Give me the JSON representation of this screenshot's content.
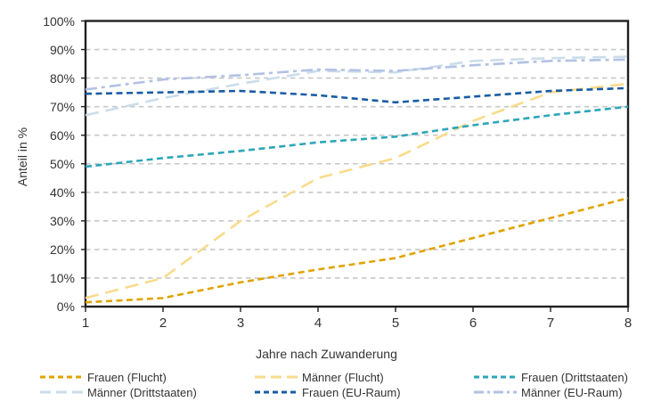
{
  "chart_data": {
    "type": "line",
    "x": [
      1,
      2,
      3,
      4,
      5,
      6,
      7,
      8
    ],
    "xtick_labels": [
      "1",
      "2",
      "3",
      "4",
      "5",
      "6",
      "7",
      "8"
    ],
    "ytick_labels": [
      "0%",
      "10%",
      "20%",
      "30%",
      "40%",
      "50%",
      "60%",
      "70%",
      "80%",
      "90%",
      "100%"
    ],
    "xlabel": "Jahre nach Zuwanderung",
    "ylabel": "Anteil in %",
    "ylim": [
      0,
      100
    ],
    "ytick_step": 10,
    "grid": "horizontal-dashed",
    "legend_position": "bottom",
    "series": [
      {
        "name": "Frauen (Flucht)",
        "color": "#E0A300",
        "line_style": "dash",
        "values": [
          1.5,
          3,
          8.5,
          13,
          17,
          24,
          31,
          38
        ]
      },
      {
        "name": "Männer (Flucht)",
        "color": "#F9DB8B",
        "line_style": "long-dash",
        "values": [
          3,
          10,
          30,
          45,
          52,
          65,
          75,
          78
        ]
      },
      {
        "name": "Frauen (Drittstaaten)",
        "color": "#2CA6B8",
        "line_style": "dash",
        "values": [
          49,
          52,
          54.5,
          57.5,
          59.5,
          63.5,
          67,
          70
        ]
      },
      {
        "name": "Männer (Drittstaaten)",
        "color": "#CBDDEA",
        "line_style": "long-dash",
        "values": [
          67,
          73,
          78,
          82.5,
          82,
          86,
          87,
          87.5
        ]
      },
      {
        "name": "Frauen (EU-Raum)",
        "color": "#185CA3",
        "line_style": "dash",
        "values": [
          74.5,
          75,
          75.5,
          74,
          71.5,
          73.5,
          75.5,
          76.5
        ]
      },
      {
        "name": "Männer (EU-Raum)",
        "color": "#B2C1E3",
        "line_style": "dash-dot",
        "values": [
          76,
          79.5,
          81,
          83,
          82.5,
          84.5,
          86,
          86.5
        ]
      }
    ],
    "colors": {
      "axis": "#1f1f1f",
      "grid": "#c7c7c7",
      "text": "#333333",
      "background": "#ffffff"
    }
  }
}
